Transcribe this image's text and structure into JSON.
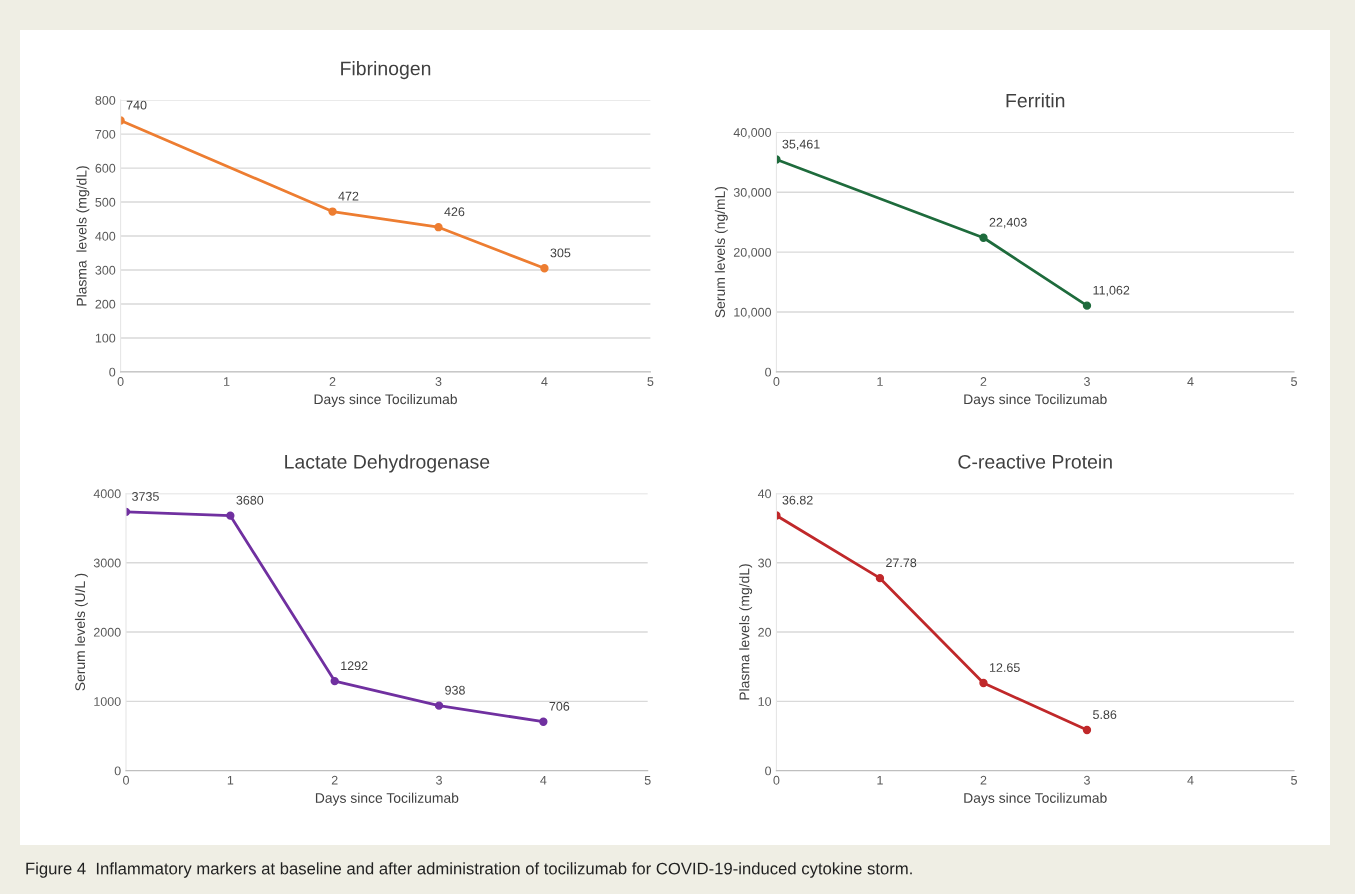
{
  "chart_data": [
    {
      "type": "line",
      "title": "Fibrinogen",
      "xlabel": "Days since Tocilizumab",
      "ylabel": "Plasma  levels (mg/dL)",
      "x": [
        0,
        2,
        3,
        4
      ],
      "series": [
        {
          "color": "#ed7d31",
          "values": [
            740,
            472,
            426,
            305
          ],
          "value_labels": [
            "740",
            "472",
            "426",
            "305"
          ]
        }
      ],
      "xlim": [
        0,
        5
      ],
      "xticks": [
        0,
        1,
        2,
        3,
        4,
        5
      ],
      "ylim": [
        0,
        800
      ],
      "yticks": [
        0,
        100,
        200,
        300,
        400,
        500,
        600,
        700,
        800
      ],
      "grid": "y",
      "marker": "circle",
      "line_style": "solid"
    },
    {
      "type": "line",
      "title": "Ferritin",
      "xlabel": "Days since Tocilizumab",
      "ylabel": "Serum levels (ng/mL)",
      "x": [
        0,
        2,
        3
      ],
      "series": [
        {
          "color": "#1e6b3c",
          "values": [
            35461,
            22403,
            11062
          ],
          "value_labels": [
            "35,461",
            "22,403",
            "11,062"
          ]
        }
      ],
      "xlim": [
        0,
        5
      ],
      "xticks": [
        0,
        1,
        2,
        3,
        4,
        5
      ],
      "ylim": [
        0,
        40000
      ],
      "yticks": [
        0,
        {
          "value": 10000,
          "label": "10,000"
        },
        {
          "value": 20000,
          "label": "20,000"
        },
        {
          "value": 30000,
          "label": "30,000"
        },
        {
          "value": 40000,
          "label": "40,000"
        }
      ],
      "grid": "y",
      "marker": "circle",
      "line_style": "solid"
    },
    {
      "type": "line",
      "title": "Lactate Dehydrogenase",
      "xlabel": "Days since Tocilizumab",
      "ylabel": "Serum levels (U/L )",
      "x": [
        0,
        1,
        2,
        3,
        4
      ],
      "series": [
        {
          "color": "#7030a0",
          "values": [
            3735,
            3680,
            1292,
            938,
            706
          ],
          "value_labels": [
            "3735",
            "3680",
            "1292",
            "938",
            "706"
          ]
        }
      ],
      "xlim": [
        0,
        5
      ],
      "xticks": [
        0,
        1,
        2,
        3,
        4,
        5
      ],
      "ylim": [
        0,
        4000
      ],
      "yticks": [
        0,
        1000,
        2000,
        3000,
        4000
      ],
      "grid": "y",
      "marker": "circle",
      "line_style": "solid"
    },
    {
      "type": "line",
      "title": "C-reactive Protein",
      "xlabel": "Days since Tocilizumab",
      "ylabel": "Plasma levels (mg/dL)",
      "x": [
        0,
        1,
        2,
        3
      ],
      "series": [
        {
          "color": "#c0282a",
          "values": [
            36.82,
            27.78,
            12.65,
            5.86
          ],
          "value_labels": [
            "36.82",
            "27.78",
            "12.65",
            "5.86"
          ]
        }
      ],
      "xlim": [
        0,
        5
      ],
      "xticks": [
        0,
        1,
        2,
        3,
        4,
        5
      ],
      "ylim": [
        0,
        40
      ],
      "yticks": [
        0,
        10,
        20,
        30,
        40
      ],
      "grid": "y",
      "marker": "circle",
      "line_style": "solid",
      "annotations": [
        "Figure 4  Inflammatory markers at baseline and after administration of tocilizumab for COVID-19-induced cytokine storm."
      ]
    }
  ]
}
